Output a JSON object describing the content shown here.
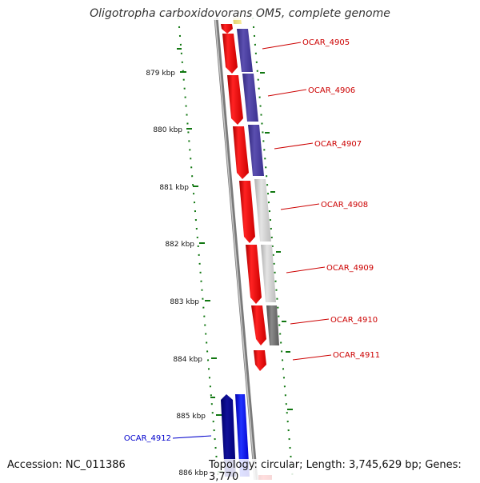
{
  "title": "Oligotropha carboxidovorans OM5, complete genome",
  "footer": {
    "accession_label": "Accession:",
    "accession": "NC_011386",
    "topology_label": "Topology:",
    "topology": "circular;",
    "length_label": "Length:",
    "length": "3,745,629 bp;",
    "genes_label": "Genes:",
    "genes": "3,770"
  },
  "ruler": {
    "ticks": [
      "879 kbp",
      "880 kbp",
      "881 kbp",
      "882 kbp",
      "883 kbp",
      "884 kbp",
      "885 kbp",
      "886 kbp"
    ]
  },
  "genes": [
    {
      "id": "OCAR_4905",
      "strand": "forward",
      "color": "#cc0000"
    },
    {
      "id": "OCAR_4906",
      "strand": "forward",
      "color": "#cc0000"
    },
    {
      "id": "OCAR_4907",
      "strand": "forward",
      "color": "#cc0000"
    },
    {
      "id": "OCAR_4908",
      "strand": "forward",
      "color": "#cc0000"
    },
    {
      "id": "OCAR_4909",
      "strand": "forward",
      "color": "#cc0000"
    },
    {
      "id": "OCAR_4910",
      "strand": "forward",
      "color": "#cc0000"
    },
    {
      "id": "OCAR_4911",
      "strand": "forward",
      "color": "#cc0000"
    },
    {
      "id": "OCAR_4912",
      "strand": "reverse",
      "color": "#0000cc"
    }
  ],
  "colors": {
    "forward_gene": "#ff0000",
    "reverse_gene": "#0000ff",
    "cog_purple": "#4a3d99",
    "cog_light_gray": "#cfcfcf",
    "cog_dark_gray": "#6f6f6f",
    "cog_navy": "#000088",
    "backbone": "#8a8a8a",
    "gc_dots": "#117711"
  }
}
